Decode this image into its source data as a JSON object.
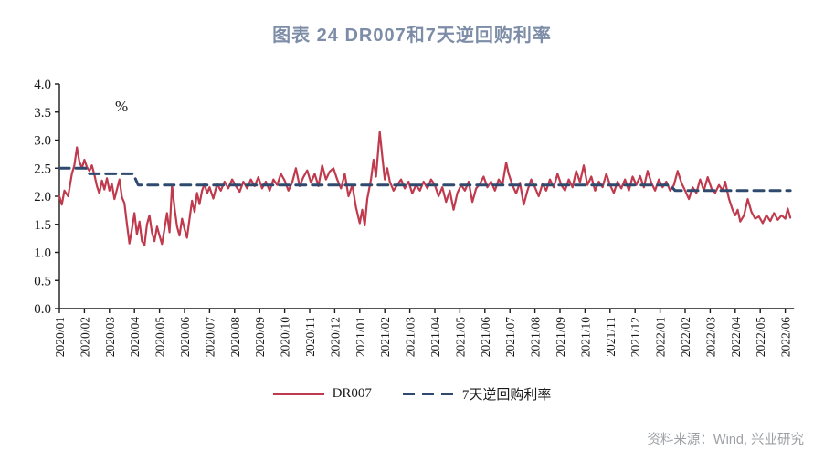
{
  "page": {
    "source_note": "资料来源：Wind, 兴业研究"
  },
  "chart_data": {
    "type": "line",
    "title": "图表 24 DR007和7天逆回购利率",
    "unit_label": "%",
    "xlabel": "",
    "ylabel": "%",
    "ylim": [
      0.0,
      4.0
    ],
    "ytick_step": 0.5,
    "ytick_labels": [
      "0.0",
      "0.5",
      "1.0",
      "1.5",
      "2.0",
      "2.5",
      "3.0",
      "3.5",
      "4.0"
    ],
    "grid": false,
    "legend_position": "bottom",
    "x_unit": "months since 2020/01 (0 = 2020/01, 29 = 2022/06)",
    "x_tick_labels": [
      "2020/01",
      "2020/02",
      "2020/03",
      "2020/04",
      "2020/05",
      "2020/06",
      "2020/07",
      "2020/08",
      "2020/09",
      "2020/10",
      "2020/11",
      "2020/12",
      "2021/01",
      "2021/02",
      "2021/03",
      "2021/04",
      "2021/05",
      "2021/06",
      "2021/07",
      "2021/08",
      "2021/09",
      "2021/10",
      "2021/11",
      "2021/12",
      "2022/01",
      "2022/02",
      "2022/03",
      "2022/04",
      "2022/05",
      "2022/06"
    ],
    "colors": {
      "dr007": "#c03a4d",
      "repo7d": "#2f4a6e",
      "title": "#7d8da7",
      "axis": "#1a1a1a",
      "source": "#9da0a4"
    },
    "series": [
      {
        "name": "DR007",
        "line_style": "solid",
        "color": "#c03a4d",
        "points": [
          [
            0,
            2.0
          ],
          [
            0.1,
            1.85
          ],
          [
            0.2,
            2.1
          ],
          [
            0.35,
            2.0
          ],
          [
            0.5,
            2.4
          ],
          [
            0.6,
            2.55
          ],
          [
            0.7,
            2.87
          ],
          [
            0.8,
            2.62
          ],
          [
            0.9,
            2.5
          ],
          [
            1.0,
            2.65
          ],
          [
            1.1,
            2.52
          ],
          [
            1.2,
            2.45
          ],
          [
            1.3,
            2.55
          ],
          [
            1.4,
            2.38
          ],
          [
            1.5,
            2.18
          ],
          [
            1.6,
            2.05
          ],
          [
            1.7,
            2.28
          ],
          [
            1.8,
            2.12
          ],
          [
            1.9,
            2.32
          ],
          [
            2.0,
            2.1
          ],
          [
            2.1,
            2.22
          ],
          [
            2.2,
            1.95
          ],
          [
            2.3,
            2.12
          ],
          [
            2.4,
            2.3
          ],
          [
            2.5,
            1.98
          ],
          [
            2.6,
            1.88
          ],
          [
            2.7,
            1.5
          ],
          [
            2.8,
            1.16
          ],
          [
            2.9,
            1.42
          ],
          [
            3.0,
            1.7
          ],
          [
            3.1,
            1.32
          ],
          [
            3.2,
            1.55
          ],
          [
            3.3,
            1.2
          ],
          [
            3.4,
            1.13
          ],
          [
            3.5,
            1.5
          ],
          [
            3.6,
            1.66
          ],
          [
            3.7,
            1.35
          ],
          [
            3.8,
            1.2
          ],
          [
            3.9,
            1.46
          ],
          [
            4.0,
            1.3
          ],
          [
            4.1,
            1.15
          ],
          [
            4.2,
            1.42
          ],
          [
            4.3,
            1.7
          ],
          [
            4.4,
            1.36
          ],
          [
            4.5,
            2.2
          ],
          [
            4.6,
            1.8
          ],
          [
            4.7,
            1.46
          ],
          [
            4.8,
            1.3
          ],
          [
            4.9,
            1.6
          ],
          [
            5.0,
            1.42
          ],
          [
            5.1,
            1.26
          ],
          [
            5.2,
            1.6
          ],
          [
            5.3,
            1.92
          ],
          [
            5.4,
            1.72
          ],
          [
            5.5,
            2.06
          ],
          [
            5.6,
            1.86
          ],
          [
            5.7,
            2.1
          ],
          [
            5.8,
            2.22
          ],
          [
            5.9,
            2.05
          ],
          [
            6.0,
            2.16
          ],
          [
            6.15,
            1.96
          ],
          [
            6.3,
            2.22
          ],
          [
            6.45,
            2.1
          ],
          [
            6.6,
            2.26
          ],
          [
            6.75,
            2.14
          ],
          [
            6.9,
            2.3
          ],
          [
            7.05,
            2.18
          ],
          [
            7.2,
            2.08
          ],
          [
            7.35,
            2.26
          ],
          [
            7.5,
            2.14
          ],
          [
            7.65,
            2.3
          ],
          [
            7.8,
            2.18
          ],
          [
            7.95,
            2.34
          ],
          [
            8.1,
            2.14
          ],
          [
            8.25,
            2.26
          ],
          [
            8.4,
            2.1
          ],
          [
            8.55,
            2.3
          ],
          [
            8.7,
            2.2
          ],
          [
            8.85,
            2.4
          ],
          [
            9.0,
            2.28
          ],
          [
            9.15,
            2.1
          ],
          [
            9.3,
            2.24
          ],
          [
            9.45,
            2.5
          ],
          [
            9.6,
            2.18
          ],
          [
            9.75,
            2.34
          ],
          [
            9.9,
            2.46
          ],
          [
            10.05,
            2.24
          ],
          [
            10.2,
            2.4
          ],
          [
            10.35,
            2.18
          ],
          [
            10.5,
            2.55
          ],
          [
            10.65,
            2.3
          ],
          [
            10.8,
            2.44
          ],
          [
            10.95,
            2.5
          ],
          [
            11.1,
            2.3
          ],
          [
            11.25,
            2.14
          ],
          [
            11.4,
            2.4
          ],
          [
            11.55,
            2.0
          ],
          [
            11.7,
            2.2
          ],
          [
            11.85,
            1.8
          ],
          [
            12.0,
            1.52
          ],
          [
            12.1,
            1.76
          ],
          [
            12.2,
            1.48
          ],
          [
            12.3,
            1.95
          ],
          [
            12.45,
            2.3
          ],
          [
            12.55,
            2.65
          ],
          [
            12.65,
            2.35
          ],
          [
            12.8,
            3.15
          ],
          [
            12.9,
            2.7
          ],
          [
            13.0,
            2.3
          ],
          [
            13.1,
            2.5
          ],
          [
            13.2,
            2.26
          ],
          [
            13.35,
            2.1
          ],
          [
            13.5,
            2.2
          ],
          [
            13.65,
            2.3
          ],
          [
            13.8,
            2.14
          ],
          [
            13.95,
            2.26
          ],
          [
            14.1,
            2.05
          ],
          [
            14.25,
            2.2
          ],
          [
            14.4,
            2.1
          ],
          [
            14.55,
            2.26
          ],
          [
            14.7,
            2.14
          ],
          [
            14.85,
            2.3
          ],
          [
            15.0,
            2.2
          ],
          [
            15.15,
            2.0
          ],
          [
            15.3,
            2.16
          ],
          [
            15.45,
            1.9
          ],
          [
            15.6,
            2.1
          ],
          [
            15.75,
            1.76
          ],
          [
            15.9,
            2.06
          ],
          [
            16.05,
            2.2
          ],
          [
            16.2,
            2.1
          ],
          [
            16.35,
            2.26
          ],
          [
            16.5,
            1.9
          ],
          [
            16.65,
            2.14
          ],
          [
            16.8,
            2.22
          ],
          [
            16.95,
            2.35
          ],
          [
            17.1,
            2.16
          ],
          [
            17.25,
            2.26
          ],
          [
            17.4,
            2.1
          ],
          [
            17.55,
            2.3
          ],
          [
            17.7,
            2.2
          ],
          [
            17.85,
            2.6
          ],
          [
            17.95,
            2.4
          ],
          [
            18.1,
            2.2
          ],
          [
            18.25,
            2.05
          ],
          [
            18.4,
            2.24
          ],
          [
            18.55,
            1.85
          ],
          [
            18.7,
            2.1
          ],
          [
            18.85,
            2.3
          ],
          [
            19.0,
            2.16
          ],
          [
            19.15,
            2.0
          ],
          [
            19.3,
            2.22
          ],
          [
            19.45,
            2.1
          ],
          [
            19.6,
            2.3
          ],
          [
            19.75,
            2.16
          ],
          [
            19.9,
            2.4
          ],
          [
            20.05,
            2.2
          ],
          [
            20.2,
            2.1
          ],
          [
            20.35,
            2.3
          ],
          [
            20.5,
            2.16
          ],
          [
            20.65,
            2.45
          ],
          [
            20.8,
            2.25
          ],
          [
            20.95,
            2.55
          ],
          [
            21.1,
            2.2
          ],
          [
            21.25,
            2.35
          ],
          [
            21.4,
            2.1
          ],
          [
            21.55,
            2.26
          ],
          [
            21.7,
            2.16
          ],
          [
            21.85,
            2.4
          ],
          [
            22.0,
            2.2
          ],
          [
            22.15,
            2.06
          ],
          [
            22.3,
            2.26
          ],
          [
            22.45,
            2.14
          ],
          [
            22.6,
            2.3
          ],
          [
            22.75,
            2.1
          ],
          [
            22.9,
            2.35
          ],
          [
            23.05,
            2.2
          ],
          [
            23.2,
            2.36
          ],
          [
            23.35,
            2.16
          ],
          [
            23.5,
            2.45
          ],
          [
            23.65,
            2.24
          ],
          [
            23.8,
            2.1
          ],
          [
            23.95,
            2.3
          ],
          [
            24.1,
            2.16
          ],
          [
            24.25,
            2.26
          ],
          [
            24.4,
            2.1
          ],
          [
            24.55,
            2.2
          ],
          [
            24.7,
            2.45
          ],
          [
            24.85,
            2.24
          ],
          [
            25.0,
            2.1
          ],
          [
            25.15,
            1.95
          ],
          [
            25.3,
            2.16
          ],
          [
            25.45,
            2.06
          ],
          [
            25.6,
            2.3
          ],
          [
            25.75,
            2.1
          ],
          [
            25.9,
            2.34
          ],
          [
            26.05,
            2.14
          ],
          [
            26.2,
            2.06
          ],
          [
            26.35,
            2.2
          ],
          [
            26.5,
            2.1
          ],
          [
            26.6,
            2.26
          ],
          [
            26.75,
            1.96
          ],
          [
            26.9,
            1.75
          ],
          [
            27.0,
            1.66
          ],
          [
            27.1,
            1.76
          ],
          [
            27.2,
            1.55
          ],
          [
            27.35,
            1.66
          ],
          [
            27.5,
            1.95
          ],
          [
            27.65,
            1.72
          ],
          [
            27.8,
            1.6
          ],
          [
            27.95,
            1.64
          ],
          [
            28.1,
            1.52
          ],
          [
            28.25,
            1.66
          ],
          [
            28.4,
            1.56
          ],
          [
            28.55,
            1.7
          ],
          [
            28.7,
            1.58
          ],
          [
            28.85,
            1.66
          ],
          [
            29.0,
            1.6
          ],
          [
            29.1,
            1.78
          ],
          [
            29.2,
            1.62
          ]
        ]
      },
      {
        "name": "7天逆回购利率",
        "line_style": "dashed",
        "color": "#2f4a6e",
        "points": [
          [
            0,
            2.5
          ],
          [
            1.05,
            2.5
          ],
          [
            1.2,
            2.4
          ],
          [
            2.95,
            2.4
          ],
          [
            3.15,
            2.2
          ],
          [
            24.4,
            2.2
          ],
          [
            24.6,
            2.1
          ],
          [
            29.2,
            2.1
          ]
        ]
      }
    ]
  }
}
